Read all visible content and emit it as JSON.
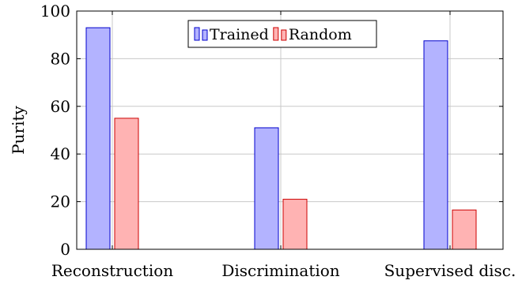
{
  "chart_data": {
    "type": "bar",
    "categories": [
      "Reconstruction",
      "Discrimination",
      "Supervised disc."
    ],
    "series": [
      {
        "name": "Trained",
        "values": [
          93,
          51,
          87.5
        ],
        "fill": "#b3b3ff",
        "stroke": "#0000cc"
      },
      {
        "name": "Random",
        "values": [
          55,
          21,
          16.5
        ],
        "fill": "#ffb3b3",
        "stroke": "#cc0000"
      }
    ],
    "title": "",
    "xlabel": "",
    "ylabel": "Purity",
    "ylim": [
      0,
      100
    ],
    "yticks": [
      0,
      20,
      40,
      60,
      80,
      100
    ],
    "grid": true,
    "legend_position": "top-center"
  }
}
